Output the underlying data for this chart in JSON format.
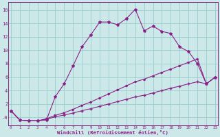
{
  "background_color": "#cce8e8",
  "grid_color": "#99cccc",
  "line_color": "#882288",
  "xlabel": "Windchill (Refroidissement éolien,°C)",
  "x_ticks": [
    0,
    1,
    2,
    3,
    4,
    5,
    6,
    7,
    8,
    9,
    10,
    11,
    12,
    13,
    14,
    15,
    16,
    17,
    18,
    19,
    20,
    21,
    22,
    23
  ],
  "y_ticks": [
    0,
    2,
    4,
    6,
    8,
    10,
    12,
    14,
    16
  ],
  "y_tick_labels": [
    "-0",
    "2",
    "4",
    "6",
    "8",
    "10",
    "12",
    "14",
    "16"
  ],
  "ylim": [
    -1.2,
    17.2
  ],
  "xlim": [
    -0.3,
    23.3
  ],
  "line1_x": [
    0,
    1,
    2,
    3,
    4,
    5,
    6,
    7,
    8,
    9,
    10,
    11,
    12,
    13,
    14,
    15,
    16,
    17,
    18,
    19,
    20,
    21,
    22,
    23
  ],
  "line1_y": [
    1.0,
    -0.4,
    -0.5,
    -0.5,
    -0.4,
    3.1,
    5.0,
    7.7,
    10.5,
    12.3,
    14.2,
    14.2,
    13.8,
    14.7,
    16.1,
    12.9,
    13.6,
    12.8,
    12.5,
    10.5,
    9.8,
    8.0,
    5.0,
    6.0
  ],
  "line2_x": [
    0,
    1,
    2,
    3,
    4,
    5,
    6,
    7,
    8,
    9,
    10,
    11,
    12,
    13,
    14,
    15,
    16,
    17,
    18,
    19,
    20,
    21,
    22,
    23
  ],
  "line2_y": [
    1.0,
    -0.4,
    -0.5,
    -0.5,
    -0.3,
    0.1,
    0.35,
    0.65,
    1.0,
    1.3,
    1.65,
    2.0,
    2.35,
    2.7,
    3.05,
    3.3,
    3.65,
    4.0,
    4.35,
    4.65,
    5.0,
    5.3,
    5.0,
    6.0
  ],
  "line3_x": [
    0,
    1,
    2,
    3,
    4,
    5,
    6,
    7,
    8,
    9,
    10,
    11,
    12,
    13,
    14,
    15,
    16,
    17,
    18,
    19,
    20,
    21,
    22,
    23
  ],
  "line3_y": [
    1.0,
    -0.4,
    -0.5,
    -0.5,
    -0.2,
    0.3,
    0.7,
    1.2,
    1.8,
    2.3,
    2.9,
    3.5,
    4.1,
    4.7,
    5.3,
    5.7,
    6.2,
    6.7,
    7.2,
    7.7,
    8.2,
    8.7,
    5.0,
    6.0
  ]
}
